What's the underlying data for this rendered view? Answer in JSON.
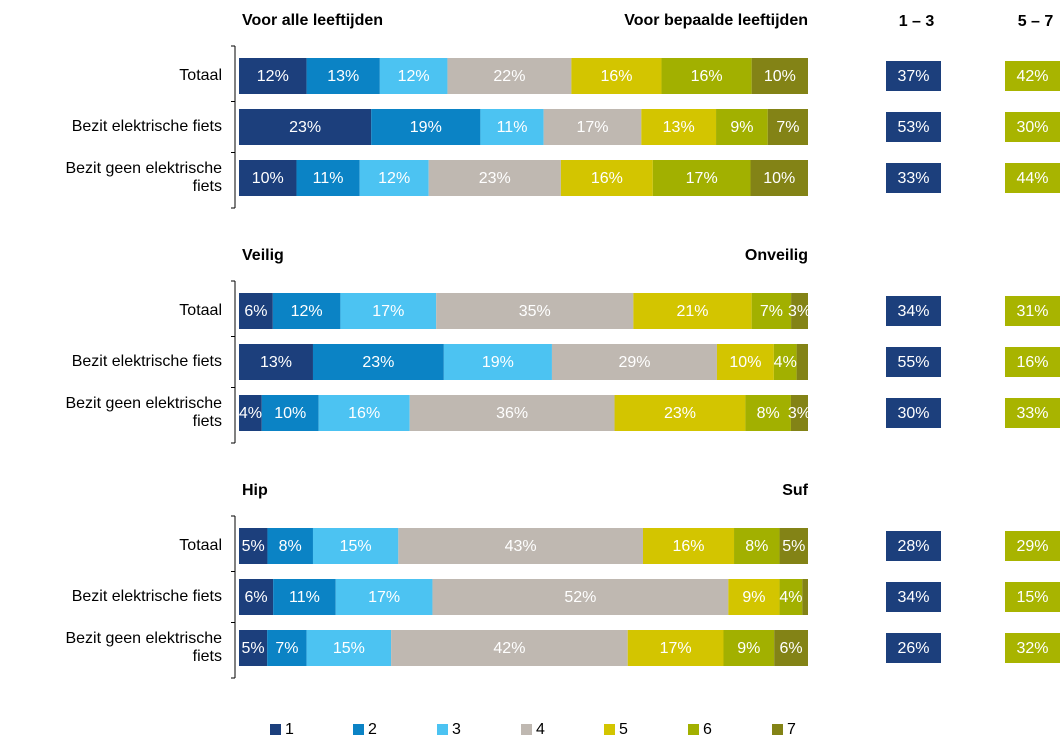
{
  "summary_headers": [
    "1 – 3",
    "5 – 7"
  ],
  "chart_data": [
    {
      "type": "bar",
      "stacked": true,
      "orientation": "horizontal",
      "left_label": "Voor alle leeftijden",
      "right_label": "Voor bepaalde leeftijden",
      "categories": [
        "Totaal",
        "Bezit elektrische fiets",
        "Bezit geen elektrische fiets"
      ],
      "series": [
        {
          "name": "1",
          "color": "#1c3f7c",
          "values": [
            12,
            23,
            10
          ],
          "value_labels": [
            "12%",
            "23%",
            "10%"
          ]
        },
        {
          "name": "2",
          "color": "#0b83c5",
          "values": [
            13,
            19,
            11
          ],
          "value_labels": [
            "13%",
            "19%",
            "11%"
          ]
        },
        {
          "name": "3",
          "color": "#4cc3f2",
          "values": [
            12,
            11,
            12
          ],
          "value_labels": [
            "12%",
            "11%",
            "12%"
          ]
        },
        {
          "name": "4",
          "color": "#bfb8b1",
          "values": [
            22,
            17,
            23
          ],
          "value_labels": [
            "22%",
            "17%",
            "23%"
          ]
        },
        {
          "name": "5",
          "color": "#d3c500",
          "values": [
            16,
            13,
            16
          ],
          "value_labels": [
            "16%",
            "13%",
            "16%"
          ]
        },
        {
          "name": "6",
          "color": "#a2b000",
          "values": [
            16,
            9,
            17
          ],
          "value_labels": [
            "16%",
            "9%",
            "17%"
          ]
        },
        {
          "name": "7",
          "color": "#838316",
          "values": [
            10,
            7,
            10
          ],
          "value_labels": [
            "10%",
            "7%",
            "10%"
          ]
        }
      ],
      "summary": [
        {
          "color": "#1c3f7c",
          "values": [
            37,
            53,
            33
          ],
          "value_labels": [
            "37%",
            "53%",
            "33%"
          ]
        },
        {
          "color": "#a8b400",
          "values": [
            42,
            30,
            44
          ],
          "value_labels": [
            "42%",
            "30%",
            "44%"
          ]
        }
      ]
    },
    {
      "type": "bar",
      "stacked": true,
      "orientation": "horizontal",
      "left_label": "Veilig",
      "right_label": "Onveilig",
      "categories": [
        "Totaal",
        "Bezit elektrische fiets",
        "Bezit geen elektrische fiets"
      ],
      "series": [
        {
          "name": "1",
          "color": "#1c3f7c",
          "values": [
            6,
            13,
            4
          ],
          "value_labels": [
            "6%",
            "13%",
            "4%"
          ]
        },
        {
          "name": "2",
          "color": "#0b83c5",
          "values": [
            12,
            23,
            10
          ],
          "value_labels": [
            "12%",
            "23%",
            "10%"
          ]
        },
        {
          "name": "3",
          "color": "#4cc3f2",
          "values": [
            17,
            19,
            16
          ],
          "value_labels": [
            "17%",
            "19%",
            "16%"
          ]
        },
        {
          "name": "4",
          "color": "#bfb8b1",
          "values": [
            35,
            29,
            36
          ],
          "value_labels": [
            "35%",
            "29%",
            "36%"
          ]
        },
        {
          "name": "5",
          "color": "#d3c500",
          "values": [
            21,
            10,
            23
          ],
          "value_labels": [
            "21%",
            "10%",
            "23%"
          ]
        },
        {
          "name": "6",
          "color": "#a2b000",
          "values": [
            7,
            4,
            8
          ],
          "value_labels": [
            "7%",
            "4%",
            "8%"
          ]
        },
        {
          "name": "7",
          "color": "#838316",
          "values": [
            3,
            2,
            3
          ],
          "value_labels": [
            "3%",
            null,
            "3%"
          ]
        }
      ],
      "summary": [
        {
          "color": "#1c3f7c",
          "values": [
            34,
            55,
            30
          ],
          "value_labels": [
            "34%",
            "55%",
            "30%"
          ]
        },
        {
          "color": "#a8b400",
          "values": [
            31,
            16,
            33
          ],
          "value_labels": [
            "31%",
            "16%",
            "33%"
          ]
        }
      ]
    },
    {
      "type": "bar",
      "stacked": true,
      "orientation": "horizontal",
      "left_label": "Hip",
      "right_label": "Suf",
      "categories": [
        "Totaal",
        "Bezit elektrische fiets",
        "Bezit geen elektrische fiets"
      ],
      "series": [
        {
          "name": "1",
          "color": "#1c3f7c",
          "values": [
            5,
            6,
            5
          ],
          "value_labels": [
            "5%",
            "6%",
            "5%"
          ]
        },
        {
          "name": "2",
          "color": "#0b83c5",
          "values": [
            8,
            11,
            7
          ],
          "value_labels": [
            "8%",
            "11%",
            "7%"
          ]
        },
        {
          "name": "3",
          "color": "#4cc3f2",
          "values": [
            15,
            17,
            15
          ],
          "value_labels": [
            "15%",
            "17%",
            "15%"
          ]
        },
        {
          "name": "4",
          "color": "#bfb8b1",
          "values": [
            43,
            52,
            42
          ],
          "value_labels": [
            "43%",
            "52%",
            "42%"
          ]
        },
        {
          "name": "5",
          "color": "#d3c500",
          "values": [
            16,
            9,
            17
          ],
          "value_labels": [
            "16%",
            "9%",
            "17%"
          ]
        },
        {
          "name": "6",
          "color": "#a2b000",
          "values": [
            8,
            4,
            9
          ],
          "value_labels": [
            "8%",
            "4%",
            "9%"
          ]
        },
        {
          "name": "7",
          "color": "#838316",
          "values": [
            5,
            1,
            6
          ],
          "value_labels": [
            "5%",
            null,
            "6%"
          ]
        }
      ],
      "summary": [
        {
          "color": "#1c3f7c",
          "values": [
            28,
            34,
            26
          ],
          "value_labels": [
            "28%",
            "34%",
            "26%"
          ]
        },
        {
          "color": "#a8b400",
          "values": [
            29,
            15,
            32
          ],
          "value_labels": [
            "29%",
            "15%",
            "32%"
          ]
        }
      ]
    }
  ]
}
